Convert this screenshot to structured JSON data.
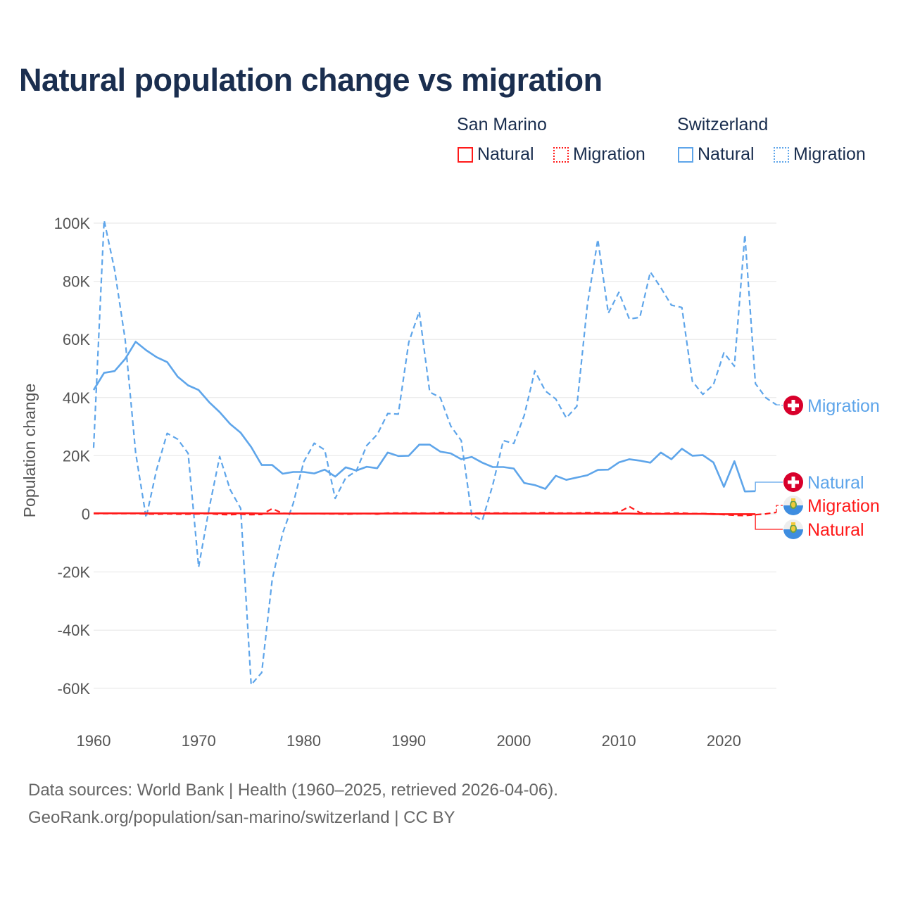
{
  "title": "Natural population change vs migration",
  "legend": {
    "groups": [
      {
        "name": "San Marino",
        "color": "#ff1a1a",
        "items": [
          "Natural",
          "Migration"
        ]
      },
      {
        "name": "Switzerland",
        "color": "#5ea5ea",
        "items": [
          "Natural",
          "Migration"
        ]
      }
    ]
  },
  "footer": {
    "line1": "Data sources: World Bank | Health (1960–2025, retrieved 2026-04-06).",
    "line2": "GeoRank.org/population/san-marino/switzerland | CC BY"
  },
  "chart_data": {
    "type": "line",
    "title": "Natural population change vs migration",
    "xlabel": "",
    "ylabel": "Population change",
    "xlim": [
      1960,
      2025
    ],
    "ylim": [
      -70000,
      100000
    ],
    "x_ticks": [
      "1960",
      "1970",
      "1980",
      "1990",
      "2000",
      "2010",
      "2020"
    ],
    "y_ticks": [
      {
        "v": 100000,
        "label": "100K"
      },
      {
        "v": 80000,
        "label": "80K"
      },
      {
        "v": 60000,
        "label": "60K"
      },
      {
        "v": 40000,
        "label": "40K"
      },
      {
        "v": 20000,
        "label": "20K"
      },
      {
        "v": 0,
        "label": "0"
      },
      {
        "v": -20000,
        "label": "-20K"
      },
      {
        "v": -40000,
        "label": "-40K"
      },
      {
        "v": -60000,
        "label": "-60K"
      }
    ],
    "grid": true,
    "series": [
      {
        "name": "Switzerland Migration",
        "label": "Migration",
        "country": "Switzerland",
        "color": "#5ea5ea",
        "dash": true,
        "x0": 1960,
        "values": [
          22.7,
          101,
          84,
          60,
          21,
          -1.3,
          15.2,
          27.7,
          25.7,
          20.8,
          -18.3,
          2,
          19.7,
          8.3,
          1.9,
          -58.8,
          -54.6,
          -22.6,
          -6.6,
          3.5,
          17.9,
          24.3,
          22,
          5.3,
          12.4,
          14.7,
          23.5,
          27.3,
          34.5,
          34.3,
          59,
          69.6,
          41.9,
          40,
          30.2,
          25.2,
          -0.4,
          -2.3,
          10,
          25.2,
          24.2,
          33.9,
          49.2,
          42.3,
          39.5,
          33,
          37,
          71.8,
          94.4,
          69,
          76.2,
          67,
          67.6,
          83.2,
          77.8,
          71.8,
          71,
          45.6,
          41.1,
          44.4,
          55.4,
          50.8,
          96,
          44.8,
          39.9,
          37.5
        ]
      },
      {
        "name": "Switzerland Natural",
        "label": "Natural",
        "country": "Switzerland",
        "color": "#5ea5ea",
        "dash": false,
        "x0": 1960,
        "values": [
          42.6,
          48.5,
          49.1,
          53.3,
          59.2,
          56.3,
          53.9,
          52.2,
          47.2,
          44.2,
          42.6,
          38.4,
          35,
          30.9,
          27.9,
          23,
          16.8,
          16.8,
          13.8,
          14.4,
          14.4,
          13.9,
          15.2,
          12.8,
          16,
          14.9,
          16.2,
          15.7,
          21.1,
          19.9,
          20,
          23.8,
          23.8,
          21.4,
          20.8,
          18.8,
          19.6,
          17.6,
          16.1,
          16.1,
          15.6,
          10.6,
          9.9,
          8.6,
          13.1,
          11.7,
          12.5,
          13.3,
          15.1,
          15.2,
          17.7,
          18.8,
          18.3,
          17.6,
          21.1,
          18.8,
          22.4,
          20,
          20.2,
          17.7,
          9.3,
          18.1,
          7.7,
          7.8
        ]
      },
      {
        "name": "San Marino Migration",
        "label": "Migration",
        "country": "San Marino",
        "color": "#ff1a1a",
        "dash": true,
        "x0": 1960,
        "values": [
          0.1,
          0.1,
          0.1,
          0.1,
          0.1,
          0.0,
          -0.1,
          0.0,
          -0.1,
          -0.1,
          0.0,
          0.1,
          -0.2,
          -0.3,
          -0.1,
          -0.3,
          -0.2,
          1.8,
          0.2,
          0.0,
          0.1,
          0.1,
          0.0,
          0.0,
          -0.1,
          0.0,
          0.1,
          -0.1,
          0.3,
          0.3,
          0.3,
          0.3,
          0.2,
          0.4,
          0.3,
          0.3,
          0.2,
          0.3,
          0.3,
          0.3,
          0.2,
          0.3,
          0.3,
          0.4,
          0.3,
          0.3,
          0.3,
          0.4,
          0.4,
          0.3,
          0.6,
          2.5,
          0.4,
          0.2,
          0.1,
          0.3,
          0.3,
          0.1,
          0.1,
          0.0,
          -0.3,
          -0.5,
          -0.6,
          -0.3,
          0.0,
          0.5
        ]
      },
      {
        "name": "San Marino Natural",
        "label": "Natural",
        "country": "San Marino",
        "color": "#ff1a1a",
        "dash": false,
        "x0": 1960,
        "values": [
          0.2,
          0.2,
          0.2,
          0.2,
          0.2,
          0.2,
          0.2,
          0.2,
          0.2,
          0.2,
          0.2,
          0.2,
          0.2,
          0.2,
          0.2,
          0.2,
          0.1,
          0.1,
          0.1,
          0.1,
          0.1,
          0.1,
          0.1,
          0.1,
          0.1,
          0.1,
          0.1,
          0.1,
          0.1,
          0.1,
          0.1,
          0.1,
          0.1,
          0.1,
          0.1,
          0.1,
          0.1,
          0.1,
          0.1,
          0.1,
          0.1,
          0.1,
          0.1,
          0.1,
          0.1,
          0.1,
          0.1,
          0.1,
          0.1,
          0.1,
          0.1,
          0.1,
          0.0,
          0.0,
          0.0,
          0.0,
          0.0,
          0.0,
          0.0,
          -0.1,
          -0.1,
          -0.1,
          -0.1,
          -0.1
        ]
      }
    ],
    "value_unit": "thousands"
  }
}
